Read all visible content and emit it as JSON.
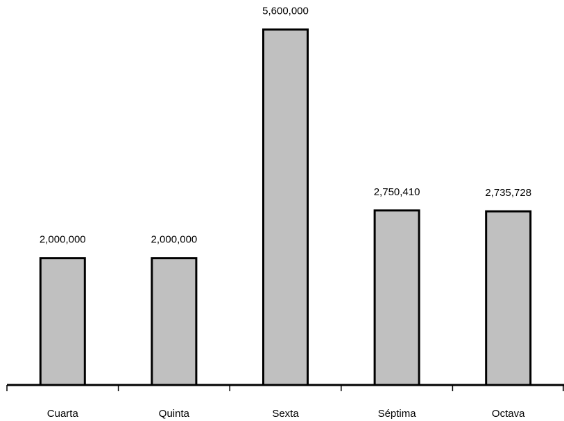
{
  "chart_data": {
    "type": "bar",
    "title": "",
    "xlabel": "",
    "ylabel": "",
    "categories": [
      "Cuarta",
      "Quinta",
      "Sexta",
      "Séptima",
      "Octava"
    ],
    "values": [
      2000000,
      2000000,
      5600000,
      2750410,
      2735728
    ],
    "value_labels": [
      "2,000,000",
      "2,000,000",
      "5,600,000",
      "2,750,410",
      "2,735,728"
    ],
    "ylim": [
      0,
      6000000
    ],
    "grid": false,
    "legend": "none",
    "bar_color": "#c0c0c0",
    "bar_edge_color": "#000000"
  }
}
